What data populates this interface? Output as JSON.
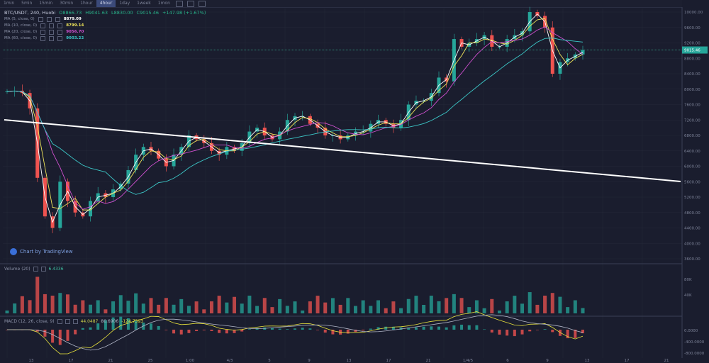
{
  "toolbar": {
    "timeframes": [
      "1min",
      "5min",
      "15min",
      "30min",
      "1hour",
      "4hour",
      "1day",
      "1week",
      "1mon"
    ],
    "active": "4hour"
  },
  "legend": {
    "symbol": "BTC/USDT, 240, Huobi",
    "open": "8866.73",
    "high": "9041.63",
    "low": "8830.00",
    "close": "9015.46",
    "change": "+147.98 (+1.67%)",
    "ma": [
      {
        "label": "MA (5, close, 0)",
        "value": "8879.09",
        "color": "#ffffff"
      },
      {
        "label": "MA (10, close, 0)",
        "value": "8799.14",
        "color": "#f0e65a"
      },
      {
        "label": "MA (20, close, 0)",
        "value": "9056.70",
        "color": "#d050d0"
      },
      {
        "label": "MA (60, close, 0)",
        "value": "9003.22",
        "color": "#3cc8c8"
      }
    ]
  },
  "watermark": "Chart by TradingView",
  "volume_legend": {
    "label": "Volume (20)",
    "value": "6.4336"
  },
  "macd_legend": {
    "label": "MACD (12, 26, close, 9)",
    "v1": "44.0487",
    "v2": "80.6906",
    "v3": "-124.7393"
  },
  "chart_data": {
    "type": "line",
    "title": "BTC/USDT, 240, Huobi",
    "price_axis": {
      "ticks": [
        "10000.00",
        "9600.00",
        "9200.00",
        "8800.00",
        "8400.00",
        "8000.00",
        "7600.00",
        "7200.00",
        "6800.00",
        "6400.00",
        "6000.00",
        "5600.00",
        "5200.00",
        "4800.00",
        "4400.00",
        "4000.00",
        "3600.00"
      ],
      "ylim": [
        3600,
        10000
      ],
      "last_price_label": "9015.46"
    },
    "x_ticks": [
      "13",
      "17",
      "21",
      "25",
      "1:00",
      "4/3",
      "5",
      "9",
      "13",
      "17",
      "21",
      "1/4/5",
      "6",
      "9",
      "13",
      "17",
      "21"
    ],
    "price": [
      7940,
      7960,
      7900,
      7500,
      5700,
      4700,
      4400,
      5600,
      5100,
      4800,
      4700,
      5100,
      5300,
      5200,
      5400,
      5550,
      5900,
      6300,
      6500,
      6400,
      6200,
      6000,
      6300,
      6500,
      6800,
      6700,
      6600,
      6400,
      6300,
      6500,
      6400,
      6600,
      6900,
      7000,
      6800,
      6700,
      6900,
      7200,
      7300,
      7300,
      7100,
      7000,
      6800,
      6800,
      6700,
      6800,
      6900,
      6900,
      7100,
      7200,
      7100,
      7000,
      7200,
      7600,
      7700,
      7700,
      7900,
      8300,
      8200,
      9300,
      9100,
      9200,
      9300,
      9400,
      9100,
      9100,
      9300,
      9400,
      9500,
      10000,
      9900,
      9600,
      8400,
      8700,
      8800,
      8900,
      9015
    ],
    "series": [
      {
        "name": "MA (5, close, 0)",
        "color": "#ffffff"
      },
      {
        "name": "MA (10, close, 0)",
        "color": "#f0e65a"
      },
      {
        "name": "MA (20, close, 0)",
        "color": "#d050d0"
      },
      {
        "name": "MA (60, close, 0)",
        "color": "#3cc8c8"
      }
    ],
    "volume_axis": {
      "ticks": [
        "80K",
        "40K"
      ]
    },
    "macd_axis": {
      "ticks": [
        "0.0000",
        "-400.0000",
        "-800.0000"
      ]
    }
  },
  "colors": {
    "up": "#26a69a",
    "down": "#ef5350",
    "bg": "#1a1d2e",
    "grid": "#242838",
    "trendline": "#ffffff"
  }
}
